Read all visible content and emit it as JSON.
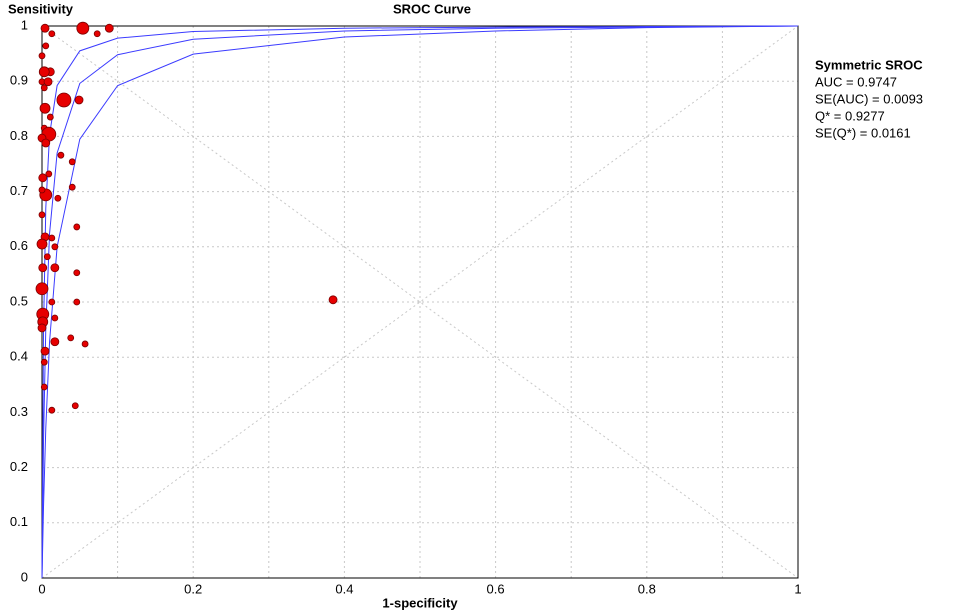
{
  "chart_data": {
    "type": "scatter",
    "title": "SROC Curve",
    "ylabel": "Sensitivity",
    "xlabel": "1-specificity",
    "xlim": [
      0,
      1
    ],
    "ylim": [
      0,
      1
    ],
    "xticks": [
      0,
      0.2,
      0.4,
      0.6,
      0.8,
      1
    ],
    "xminor_grid": [
      0.1,
      0.3,
      0.5,
      0.7,
      0.9
    ],
    "yticks": [
      0,
      0.1,
      0.2,
      0.3,
      0.4,
      0.5,
      0.6,
      0.7,
      0.8,
      0.9,
      1
    ],
    "grid": true,
    "diagonals": true,
    "legend": {
      "title": "Symmetric SROC",
      "lines": [
        "AUC = 0.9747",
        "SE(AUC) = 0.0093",
        "Q* = 0.9277",
        "SE(Q*) = 0.0161"
      ]
    },
    "point_color": "#e60000",
    "x": [
      0.054,
      0.073,
      0.089,
      0.004,
      0.013,
      0.005,
      0,
      0.011,
      0.003,
      0,
      0.008,
      0.029,
      0.049,
      0.003,
      0.004,
      0.011,
      0.003,
      0.009,
      0,
      0.005,
      0.025,
      0.001,
      0.009,
      0.04,
      0.04,
      0.005,
      0,
      0.021,
      0,
      0.046,
      0.004,
      0,
      0.013,
      0.017,
      0.007,
      0.001,
      0.017,
      0.046,
      0,
      0.013,
      0.046,
      0.385,
      0.001,
      0.001,
      0.017,
      0,
      0.038,
      0.017,
      0.057,
      0.004,
      0.003,
      0.003,
      0.013,
      0.044
    ],
    "y": [
      0.996,
      0.986,
      0.996,
      0.996,
      0.986,
      0.964,
      0.946,
      0.917,
      0.917,
      0.899,
      0.899,
      0.866,
      0.866,
      0.888,
      0.851,
      0.835,
      0.815,
      0.804,
      0.797,
      0.788,
      0.766,
      0.725,
      0.732,
      0.754,
      0.708,
      0.694,
      0.703,
      0.688,
      0.658,
      0.636,
      0.618,
      0.605,
      0.616,
      0.6,
      0.582,
      0.562,
      0.562,
      0.553,
      0.524,
      0.5,
      0.5,
      0.504,
      0.478,
      0.464,
      0.471,
      0.453,
      0.435,
      0.428,
      0.424,
      0.411,
      0.391,
      0.346,
      0.304,
      0.312
    ],
    "sizes": [
      6,
      3,
      4,
      4,
      3,
      3,
      3,
      4,
      5,
      3,
      4,
      7,
      4,
      3,
      5,
      3,
      3,
      7,
      4,
      4,
      3,
      4,
      3,
      3,
      3,
      6,
      3,
      3,
      3,
      3,
      4,
      5,
      3,
      3,
      3,
      4,
      4,
      3,
      6,
      3,
      3,
      4,
      6,
      5,
      3,
      4,
      3,
      4,
      3,
      4,
      3,
      3,
      3,
      3
    ],
    "curves": [
      {
        "color": "#3b3bff",
        "x": [
          0,
          0.002,
          0.005,
          0.01,
          0.02,
          0.05,
          0.1,
          0.2,
          0.4,
          0.6,
          0.8,
          1
        ],
        "values": [
          0,
          0.447,
          0.67,
          0.803,
          0.892,
          0.955,
          0.978,
          0.99,
          0.996,
          0.998,
          0.999,
          1
        ]
      },
      {
        "color": "#3b3bff",
        "x": [
          0,
          0.002,
          0.005,
          0.01,
          0.02,
          0.05,
          0.1,
          0.2,
          0.4,
          0.6,
          0.8,
          1
        ],
        "values": [
          0,
          0.247,
          0.452,
          0.624,
          0.77,
          0.896,
          0.948,
          0.976,
          0.991,
          0.996,
          0.998,
          1
        ]
      },
      {
        "color": "#3b3bff",
        "x": [
          0,
          0.002,
          0.005,
          0.01,
          0.02,
          0.05,
          0.1,
          0.2,
          0.4,
          0.6,
          0.8,
          1
        ],
        "values": [
          0,
          0.129,
          0.271,
          0.428,
          0.6,
          0.795,
          0.892,
          0.949,
          0.98,
          0.991,
          0.997,
          1
        ]
      }
    ]
  }
}
